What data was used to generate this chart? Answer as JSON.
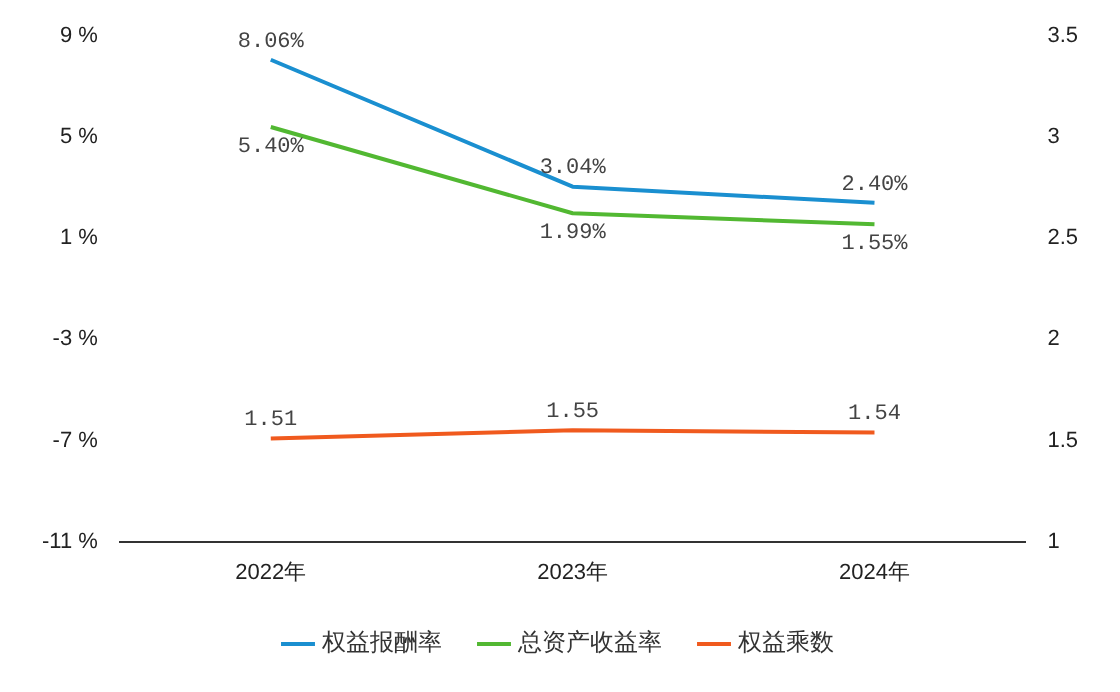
{
  "chart_data": {
    "type": "line",
    "categories": [
      "2022年",
      "2023年",
      "2024年"
    ],
    "series": [
      {
        "name": "权益报酬率",
        "color": "#1a8fd0",
        "values": [
          8.06,
          3.04,
          2.4
        ],
        "value_labels": [
          "8.06%",
          "3.04%",
          "2.40%"
        ]
      },
      {
        "name": "总资产收益率",
        "color": "#52b832",
        "values": [
          5.4,
          1.99,
          1.55
        ],
        "value_labels": [
          "5.40%",
          "1.99%",
          "1.55%"
        ]
      },
      {
        "name": "权益乘数",
        "color": "#f05a1e",
        "values": [
          1.51,
          1.55,
          1.54
        ],
        "axis": "y2",
        "value_labels": [
          "1.51",
          "1.55",
          "1.54"
        ]
      }
    ],
    "ylim": [
      -11,
      9
    ],
    "yticks": [
      {
        "value": -11,
        "label": "-11 %"
      },
      {
        "value": -7,
        "label": "-7 %"
      },
      {
        "value": -3,
        "label": "-3 %"
      },
      {
        "value": 1,
        "label": "1 %"
      },
      {
        "value": 5,
        "label": "5 %"
      },
      {
        "value": 9,
        "label": "9 %"
      }
    ],
    "y2lim": [
      1,
      3.5
    ],
    "y2ticks": [
      1,
      1.5,
      2,
      2.5,
      3,
      3.5
    ],
    "grid": false,
    "legend": "bottom",
    "marker": "none",
    "line_style": "solid"
  }
}
